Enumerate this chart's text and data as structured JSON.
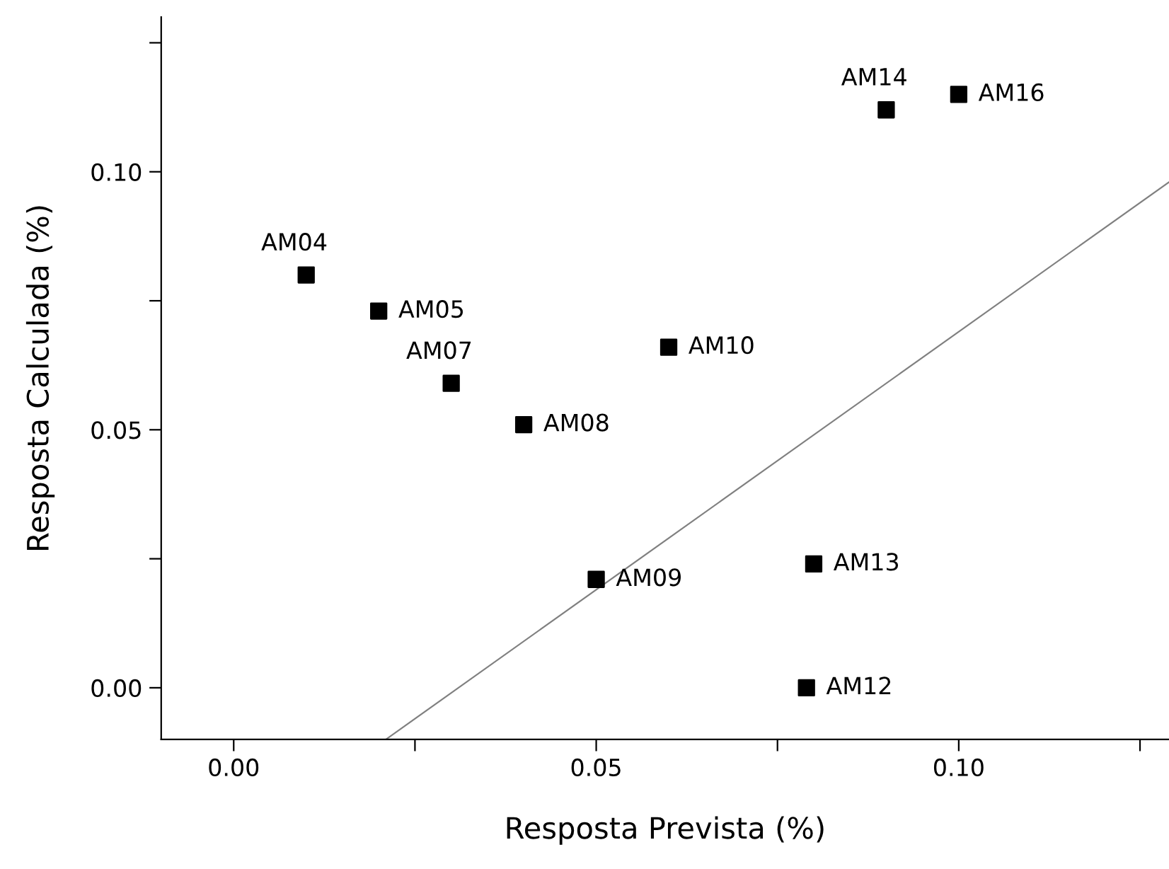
{
  "chart_data": {
    "type": "scatter",
    "xlabel": "Resposta Prevista (%)",
    "ylabel": "Resposta Calculada (%)",
    "xlim": [
      -0.01,
      0.129
    ],
    "ylim": [
      -0.01,
      0.13
    ],
    "xticks": [
      {
        "value": 0.0,
        "label": "0.00"
      },
      {
        "value": 0.025,
        "label": null
      },
      {
        "value": 0.05,
        "label": "0.05"
      },
      {
        "value": 0.075,
        "label": null
      },
      {
        "value": 0.1,
        "label": "0.10"
      },
      {
        "value": 0.125,
        "label": null
      }
    ],
    "yticks": [
      {
        "value": 0.0,
        "label": "0.00"
      },
      {
        "value": 0.025,
        "label": null
      },
      {
        "value": 0.05,
        "label": "0.05"
      },
      {
        "value": 0.075,
        "label": null
      },
      {
        "value": 0.1,
        "label": "0.10"
      },
      {
        "value": 0.125,
        "label": null
      }
    ],
    "grid": false,
    "marker": "square",
    "series": [
      {
        "color": "#000000",
        "x": [
          0.01,
          0.02,
          0.03,
          0.04,
          0.05,
          0.06,
          0.079,
          0.08,
          0.09,
          0.1
        ],
        "values": [
          0.08,
          0.073,
          0.059,
          0.051,
          0.021,
          0.066,
          0.0,
          0.024,
          0.112,
          0.115
        ],
        "value_labels": [
          "AM04",
          "AM05",
          "AM07",
          "AM08",
          "AM09",
          "AM10",
          "AM12",
          "AM13",
          "AM14",
          "AM16"
        ]
      },
      {
        "type": "line",
        "color": "#808080",
        "marker": "none",
        "line_style": "solid",
        "x": [
          0.021,
          0.129
        ],
        "values": [
          -0.01,
          0.098
        ]
      }
    ]
  }
}
